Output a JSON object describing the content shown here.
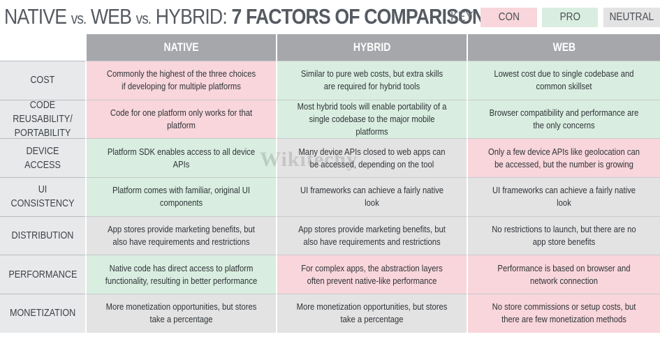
{
  "title": {
    "part1": "NATIVE",
    "vs1": "vs.",
    "part2": "WEB",
    "vs2": "vs.",
    "part3": "HYBRID:",
    "part4": "7 FACTORS OF COMPARISON"
  },
  "key": {
    "label": "KEY",
    "con": "CON",
    "pro": "PRO",
    "neutral": "NEUTRAL"
  },
  "colors": {
    "con": "#f8d6db",
    "pro": "#d9eee0",
    "neutral": "#e3e3e3",
    "header": "#a5a7ab"
  },
  "columns": [
    "NATIVE",
    "HYBRID",
    "WEB"
  ],
  "rows": [
    {
      "factor": "COST",
      "native": {
        "text": "Commonly the highest of the three choices if developing for multiple platforms",
        "rating": "con"
      },
      "hybrid": {
        "text": "Similar to pure web costs, but extra skills are required for hybrid tools",
        "rating": "pro"
      },
      "web": {
        "text": "Lowest cost due to single codebase and common skillset",
        "rating": "pro"
      }
    },
    {
      "factor": "CODE REUSABILITY/\nPORTABILITY",
      "native": {
        "text": "Code for one platform only works for that platform",
        "rating": "con"
      },
      "hybrid": {
        "text": "Most hybrid tools will enable portability of a single codebase to the major mobile platforms",
        "rating": "pro"
      },
      "web": {
        "text": "Browser compatibility and performance are the only concerns",
        "rating": "pro"
      }
    },
    {
      "factor": "DEVICE ACCESS",
      "native": {
        "text": "Platform SDK enables access to all device APIs",
        "rating": "pro"
      },
      "hybrid": {
        "text": "Many device APIs closed to web apps can be accessed, depending on the tool",
        "rating": "neutral"
      },
      "web": {
        "text": "Only a few device APIs like geolocation can be accessed, but the number is growing",
        "rating": "con"
      }
    },
    {
      "factor": "UI CONSISTENCY",
      "native": {
        "text": "Platform comes with familiar, original UI components",
        "rating": "pro"
      },
      "hybrid": {
        "text": "UI frameworks can achieve a fairly native look",
        "rating": "neutral"
      },
      "web": {
        "text": "UI frameworks can achieve a fairly native look",
        "rating": "neutral"
      }
    },
    {
      "factor": "DISTRIBUTION",
      "native": {
        "text": "App stores provide marketing benefits, but also have requirements and restrictions",
        "rating": "neutral"
      },
      "hybrid": {
        "text": "App stores provide marketing benefits, but also have requirements and restrictions",
        "rating": "neutral"
      },
      "web": {
        "text": "No restrictions to launch, but there are no app store benefits",
        "rating": "neutral"
      }
    },
    {
      "factor": "PERFORMANCE",
      "native": {
        "text": "Native code has direct access to platform functionality, resulting in better performance",
        "rating": "pro"
      },
      "hybrid": {
        "text": "For complex apps, the abstraction layers often prevent native-like performance",
        "rating": "con"
      },
      "web": {
        "text": "Performance is based on browser and network connection",
        "rating": "con"
      }
    },
    {
      "factor": "MONETIZATION",
      "native": {
        "text": "More monetization opportunities, but stores take a percentage",
        "rating": "neutral"
      },
      "hybrid": {
        "text": "More monetization opportunities, but stores take a percentage",
        "rating": "neutral"
      },
      "web": {
        "text": "No store commissions or setup costs, but there are few monetization methods",
        "rating": "con"
      }
    }
  ],
  "watermark": "Wikitechy"
}
